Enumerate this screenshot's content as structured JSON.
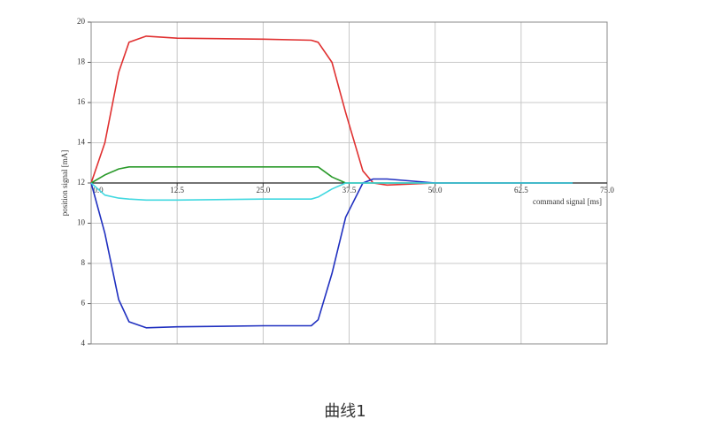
{
  "chart_data": {
    "type": "line",
    "x_label": "command signal [ms]",
    "y_label": "position signal [mA]",
    "caption": "曲线1",
    "x": [
      0,
      2,
      4,
      5.5,
      8,
      12.5,
      25,
      32,
      33,
      35,
      37,
      39.5,
      41,
      43,
      50,
      62.5,
      70
    ],
    "series": [
      {
        "name": "red",
        "color": "#e03030",
        "values": [
          12,
          14,
          17.5,
          19,
          19.3,
          19.2,
          19.15,
          19.1,
          19.0,
          18.0,
          15.5,
          12.6,
          12.0,
          11.9,
          12.0,
          12.0,
          12.0
        ]
      },
      {
        "name": "green",
        "color": "#2a9a2a",
        "values": [
          12,
          12.4,
          12.7,
          12.8,
          12.8,
          12.8,
          12.8,
          12.8,
          12.8,
          12.3,
          12.0,
          12.0,
          12.0,
          12.0,
          12.0,
          12.0,
          12.0
        ]
      },
      {
        "name": "blue",
        "color": "#2030c0",
        "values": [
          12,
          9.5,
          6.2,
          5.1,
          4.8,
          4.85,
          4.9,
          4.9,
          5.2,
          7.5,
          10.3,
          12.0,
          12.2,
          12.2,
          12.0,
          12.0,
          12.0
        ]
      },
      {
        "name": "cyan",
        "color": "#40d8e0",
        "values": [
          12,
          11.4,
          11.25,
          11.2,
          11.15,
          11.15,
          11.2,
          11.2,
          11.3,
          11.7,
          12.0,
          12.0,
          12.0,
          12.0,
          12.0,
          12.0,
          12.0
        ]
      }
    ],
    "xlim": [
      0,
      75
    ],
    "xticks": [
      {
        "value": 0,
        "label": "0.0"
      },
      12.5,
      {
        "value": 25,
        "label": "25.0"
      },
      37.5,
      {
        "value": 50,
        "label": "50.0"
      },
      62.5,
      {
        "value": 75,
        "label": "75.0"
      }
    ],
    "ylim": [
      4,
      20
    ],
    "yticks": [
      4,
      6,
      8,
      10,
      12,
      14,
      16,
      18,
      20
    ],
    "x_axis_at": 12,
    "grid": true
  }
}
